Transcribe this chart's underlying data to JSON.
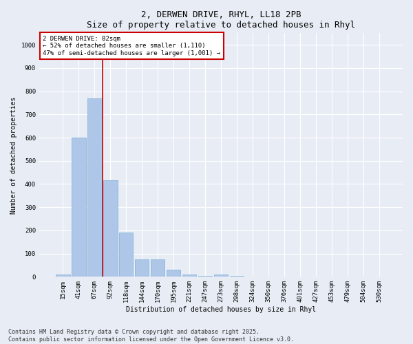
{
  "title": "2, DERWEN DRIVE, RHYL, LL18 2PB",
  "subtitle": "Size of property relative to detached houses in Rhyl",
  "xlabel": "Distribution of detached houses by size in Rhyl",
  "ylabel": "Number of detached properties",
  "categories": [
    "15sqm",
    "41sqm",
    "67sqm",
    "92sqm",
    "118sqm",
    "144sqm",
    "170sqm",
    "195sqm",
    "221sqm",
    "247sqm",
    "273sqm",
    "298sqm",
    "324sqm",
    "350sqm",
    "376sqm",
    "401sqm",
    "427sqm",
    "453sqm",
    "479sqm",
    "504sqm",
    "530sqm"
  ],
  "values": [
    10,
    600,
    770,
    415,
    190,
    75,
    75,
    30,
    10,
    5,
    10,
    5,
    0,
    0,
    0,
    0,
    0,
    0,
    0,
    0,
    0
  ],
  "bar_color": "#aec6e8",
  "bar_edge_color": "#7aafd4",
  "vline_x": 2.5,
  "vline_color": "#cc0000",
  "annotation_text": "2 DERWEN DRIVE: 82sqm\n← 52% of detached houses are smaller (1,110)\n47% of semi-detached houses are larger (1,001) →",
  "annotation_box_color": "#ffffff",
  "annotation_border_color": "#cc0000",
  "ylim": [
    0,
    1050
  ],
  "yticks": [
    0,
    100,
    200,
    300,
    400,
    500,
    600,
    700,
    800,
    900,
    1000
  ],
  "bg_color": "#e8edf5",
  "plot_bg_color": "#e8edf5",
  "footer": "Contains HM Land Registry data © Crown copyright and database right 2025.\nContains public sector information licensed under the Open Government Licence v3.0.",
  "title_fontsize": 9,
  "axis_fontsize": 7,
  "tick_fontsize": 6.5,
  "annotation_fontsize": 6.5,
  "footer_fontsize": 6
}
